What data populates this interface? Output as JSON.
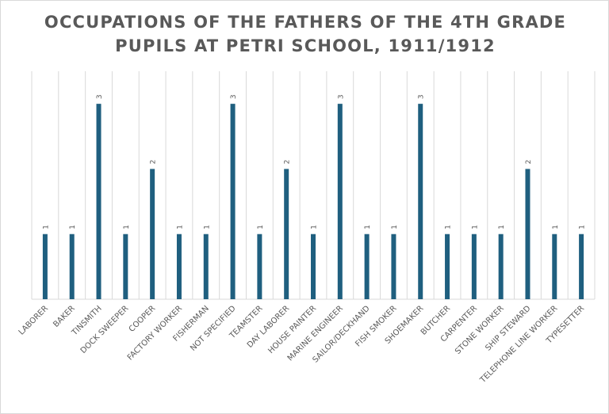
{
  "chart_data": {
    "type": "bar",
    "title_lines": [
      "OCCUPATIONS OF THE FATHERS OF THE 4TH GRADE",
      "PUPILS AT PETRI SCHOOL, 1911/1912"
    ],
    "categories": [
      "LABORER",
      "BAKER",
      "TINSMITH",
      "DOCK SWEEPER",
      "COOPER",
      "FACTORY WORKER",
      "FISHERMAN",
      "NOT SPECIFIED",
      "TEAMSTER",
      "DAY LABORER",
      "HOUSE PAINTER",
      "MARINE ENGINEER",
      "SAILOR/DECKHAND",
      "FISH SMOKER",
      "SHOEMAKER",
      "BUTCHER",
      "CARPENTER",
      "STONE WORKER",
      "SHIP STEWARD",
      "TELEPHONE LINE WORKER",
      "TYPESETTER"
    ],
    "values": [
      1,
      1,
      3,
      1,
      2,
      1,
      1,
      3,
      1,
      2,
      1,
      3,
      1,
      1,
      3,
      1,
      1,
      1,
      2,
      1,
      1
    ],
    "ylim": [
      0,
      3.5
    ],
    "xlabel": "",
    "ylabel": "",
    "grid": "vertical",
    "colors": {
      "bar": "#1f5f7f",
      "grid": "#d9d9d9",
      "text": "#595959"
    }
  }
}
